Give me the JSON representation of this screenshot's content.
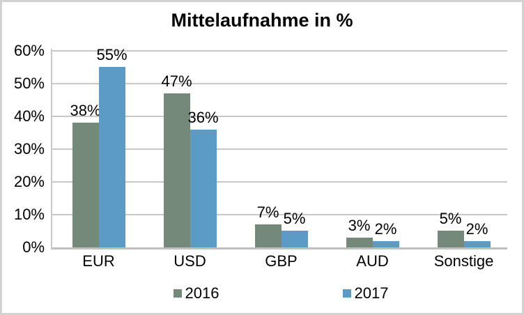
{
  "chart_data": {
    "type": "bar",
    "title": "Mittelaufnahme in %",
    "categories": [
      "EUR",
      "USD",
      "GBP",
      "AUD",
      "Sonstige"
    ],
    "series": [
      {
        "name": "2016",
        "color": "#74897A",
        "values": [
          38,
          47,
          7,
          3,
          5
        ],
        "labels": [
          "38%",
          "47%",
          "7%",
          "3%",
          "5%"
        ]
      },
      {
        "name": "2017",
        "color": "#5B9BC6",
        "values": [
          55,
          36,
          5,
          2,
          2
        ],
        "labels": [
          "55%",
          "36%",
          "5%",
          "2%",
          "2%"
        ]
      }
    ],
    "y_axis": {
      "range": [
        0,
        60
      ],
      "ticks": [
        0,
        10,
        20,
        30,
        40,
        50,
        60
      ],
      "tick_labels": [
        "0%",
        "10%",
        "20%",
        "30%",
        "40%",
        "50%",
        "60%"
      ]
    },
    "grid": true,
    "legend": {
      "position": "bottom",
      "entries": [
        "2016",
        "2017"
      ]
    },
    "colors": {
      "gridline": "#C8C8C8",
      "axis_line": "#BFBFBF",
      "text": "#000000",
      "background": "#FFFFFF",
      "border": "#D2D2D2"
    }
  }
}
